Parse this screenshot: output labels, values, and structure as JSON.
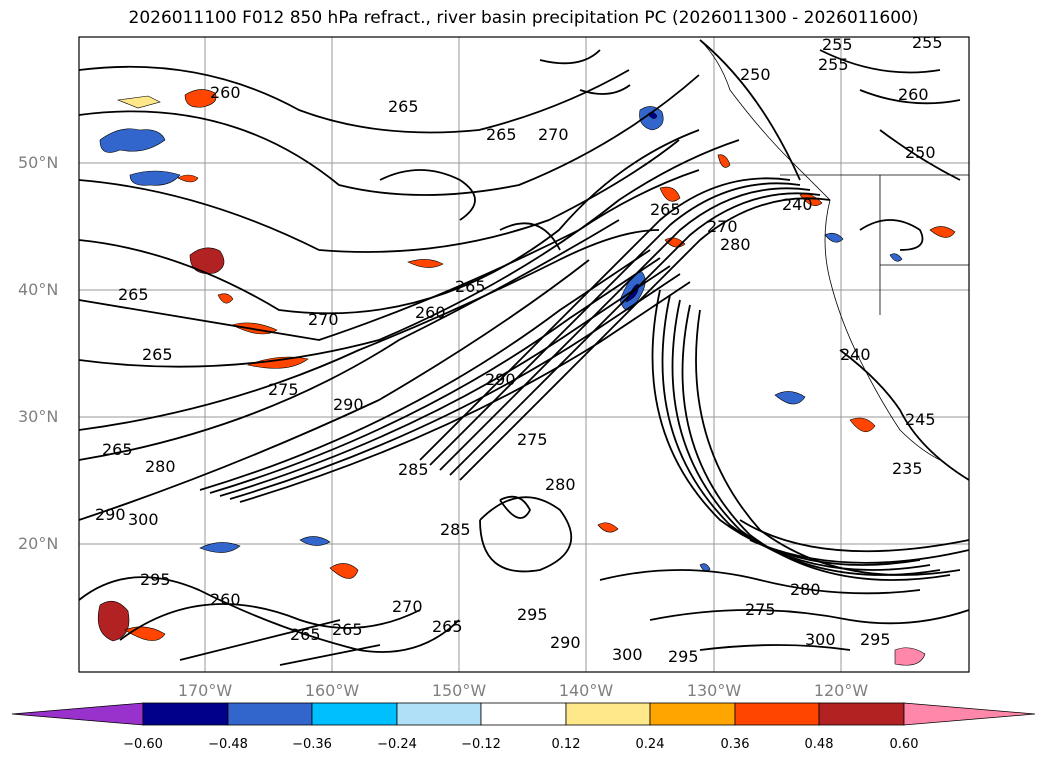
{
  "title": "2026011100 F012 850 hPa refract., river basin precipitation PC (2026011300 - 2026011600)",
  "map": {
    "region": "North-East Pacific / Western North America",
    "lat_labels": [
      "50°N",
      "40°N",
      "30°N",
      "20°N"
    ],
    "lon_labels": [
      "170°W",
      "160°W",
      "150°W",
      "140°W",
      "130°W",
      "120°W"
    ],
    "contour_labels": [
      "255",
      "255",
      "255",
      "260",
      "265",
      "270",
      "265",
      "265",
      "270",
      "260",
      "260",
      "265",
      "270",
      "275",
      "280",
      "290",
      "285",
      "275",
      "280",
      "250",
      "235",
      "265",
      "280",
      "290",
      "300",
      "295",
      "260",
      "265",
      "270",
      "265",
      "265",
      "295",
      "290",
      "300",
      "295",
      "275",
      "300",
      "280",
      "295",
      "240",
      "265",
      "245",
      "240",
      "265",
      "285",
      "290",
      "250"
    ]
  },
  "colorbar": {
    "ticks": [
      "−0.60",
      "−0.48",
      "−0.36",
      "−0.24",
      "−0.12",
      "0.12",
      "0.24",
      "0.36",
      "0.48",
      "0.60"
    ],
    "colors": [
      "#9932cc",
      "#00008b",
      "#3366cc",
      "#00bfff",
      "#b0e0f8",
      "#ffffff",
      "#ffe88a",
      "#ffa500",
      "#ff4500",
      "#b22222",
      "#ff88aa"
    ]
  }
}
